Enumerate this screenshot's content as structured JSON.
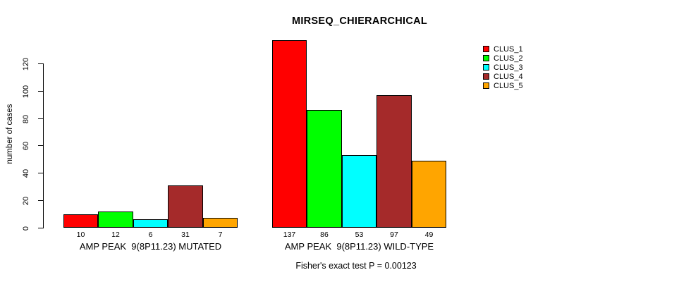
{
  "figure": {
    "title": "MIRSEQ_CHIERARCHICAL",
    "ylabel": "number of cases",
    "footer": "Fisher's exact test P = 0.00123"
  },
  "chart_data": {
    "type": "bar",
    "title": "MIRSEQ_CHIERARCHICAL",
    "xlabel": "",
    "ylabel": "number of cases",
    "yticks": [
      0,
      20,
      40,
      60,
      80,
      100,
      120
    ],
    "ylim": [
      0,
      137
    ],
    "grid": false,
    "legend_position": "right",
    "categories": [
      "AMP PEAK  9(8P11.23) MUTATED",
      "AMP PEAK  9(8P11.23) WILD-TYPE"
    ],
    "series": [
      {
        "name": "CLUS_1",
        "color": "#FF0000",
        "values": [
          10,
          137
        ]
      },
      {
        "name": "CLUS_2",
        "color": "#00FF00",
        "values": [
          12,
          86
        ]
      },
      {
        "name": "CLUS_3",
        "color": "#00FFFF",
        "values": [
          6,
          53
        ]
      },
      {
        "name": "CLUS_4",
        "color": "#A52A2A",
        "values": [
          31,
          97
        ]
      },
      {
        "name": "CLUS_5",
        "color": "#FFA500",
        "values": [
          7,
          49
        ]
      }
    ],
    "bar_value_labels": [
      [
        10,
        12,
        6,
        31,
        7
      ],
      [
        137,
        86,
        53,
        97,
        49
      ]
    ],
    "annotation": "Fisher's exact test P = 0.00123"
  }
}
